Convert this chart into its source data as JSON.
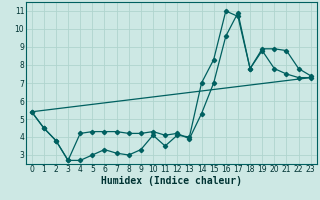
{
  "xlabel": "Humidex (Indice chaleur)",
  "bg_color": "#cde8e4",
  "grid_color": "#b0d4ce",
  "line_color": "#006060",
  "spine_color": "#006060",
  "xlim": [
    -0.5,
    23.5
  ],
  "ylim": [
    2.5,
    11.5
  ],
  "xticks": [
    0,
    1,
    2,
    3,
    4,
    5,
    6,
    7,
    8,
    9,
    10,
    11,
    12,
    13,
    14,
    15,
    16,
    17,
    18,
    19,
    20,
    21,
    22,
    23
  ],
  "yticks": [
    3,
    4,
    5,
    6,
    7,
    8,
    9,
    10,
    11
  ],
  "line1_x": [
    0,
    1,
    2,
    3,
    4,
    5,
    6,
    7,
    8,
    9,
    10,
    11,
    12,
    13,
    14,
    15,
    16,
    17,
    18,
    19,
    20,
    21,
    22,
    23
  ],
  "line1_y": [
    5.4,
    4.5,
    3.8,
    2.7,
    2.7,
    3.0,
    3.3,
    3.1,
    3.0,
    3.3,
    4.1,
    3.5,
    4.1,
    4.0,
    7.0,
    8.3,
    11.0,
    10.7,
    7.8,
    8.8,
    7.8,
    7.5,
    7.3,
    7.3
  ],
  "line2_x": [
    0,
    1,
    2,
    3,
    4,
    5,
    6,
    7,
    8,
    9,
    10,
    11,
    12,
    13,
    14,
    15,
    16,
    17,
    18,
    19,
    20,
    21,
    22,
    23
  ],
  "line2_y": [
    5.4,
    4.5,
    3.8,
    2.7,
    4.2,
    4.3,
    4.3,
    4.3,
    4.2,
    4.2,
    4.3,
    4.1,
    4.2,
    3.9,
    5.3,
    7.0,
    9.6,
    10.9,
    7.8,
    8.9,
    8.9,
    8.8,
    7.8,
    7.4
  ],
  "line3_x": [
    0,
    23
  ],
  "line3_y": [
    5.4,
    7.3
  ],
  "xlabel_fontsize": 7,
  "tick_fontsize": 5.5,
  "linewidth": 0.9,
  "markersize": 2.2
}
